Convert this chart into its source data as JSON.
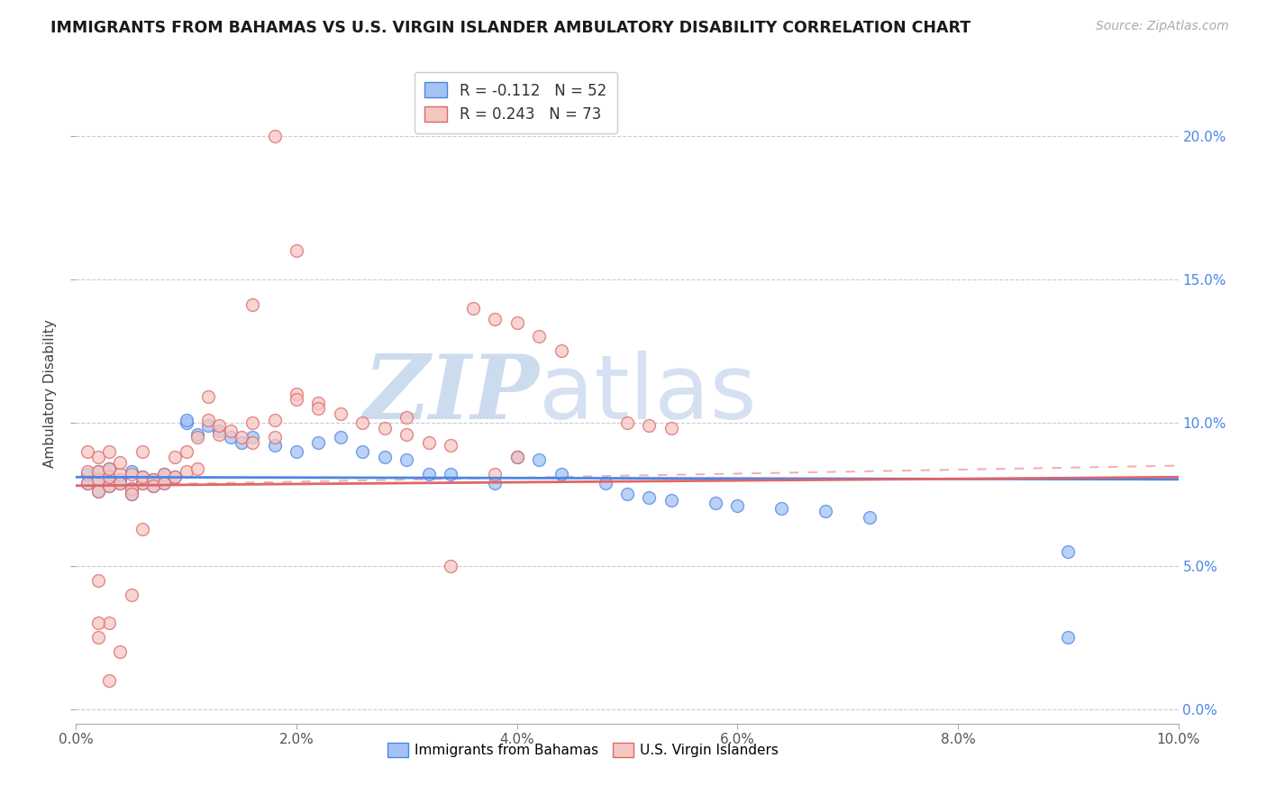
{
  "title": "IMMIGRANTS FROM BAHAMAS VS U.S. VIRGIN ISLANDER AMBULATORY DISABILITY CORRELATION CHART",
  "source": "Source: ZipAtlas.com",
  "ylabel": "Ambulatory Disability",
  "xlim": [
    0.0,
    0.1
  ],
  "ylim": [
    -0.005,
    0.225
  ],
  "xtick_vals": [
    0.0,
    0.02,
    0.04,
    0.06,
    0.08,
    0.1
  ],
  "ytick_vals": [
    0.0,
    0.05,
    0.1,
    0.15,
    0.2
  ],
  "blue_R": -0.112,
  "blue_N": 52,
  "pink_R": 0.243,
  "pink_N": 73,
  "blue_color": "#a4c2f4",
  "pink_color": "#f4c7c3",
  "blue_edge_color": "#4a86e8",
  "pink_edge_color": "#e06666",
  "blue_line_color": "#4a86e8",
  "pink_line_color": "#e06666",
  "pink_dash_color": "#e06666",
  "right_axis_color": "#4a86e8",
  "legend_label_blue": "Immigrants from Bahamas",
  "legend_label_pink": "U.S. Virgin Islanders",
  "blue_line_intercept": 0.081,
  "blue_line_slope": -0.008,
  "pink_solid_intercept": 0.078,
  "pink_solid_slope": 0.03,
  "pink_dash_intercept": 0.078,
  "pink_dash_slope": 0.07,
  "blue_x": [
    0.001,
    0.001,
    0.002,
    0.002,
    0.002,
    0.003,
    0.003,
    0.003,
    0.004,
    0.004,
    0.005,
    0.005,
    0.005,
    0.006,
    0.006,
    0.007,
    0.007,
    0.008,
    0.008,
    0.009,
    0.01,
    0.01,
    0.011,
    0.012,
    0.013,
    0.014,
    0.015,
    0.016,
    0.018,
    0.02,
    0.022,
    0.024,
    0.026,
    0.028,
    0.03,
    0.032,
    0.034,
    0.038,
    0.04,
    0.042,
    0.044,
    0.048,
    0.05,
    0.052,
    0.054,
    0.058,
    0.06,
    0.064,
    0.068,
    0.072,
    0.09,
    0.09
  ],
  "blue_y": [
    0.079,
    0.082,
    0.08,
    0.076,
    0.083,
    0.078,
    0.081,
    0.084,
    0.08,
    0.079,
    0.077,
    0.075,
    0.083,
    0.079,
    0.081,
    0.08,
    0.078,
    0.082,
    0.079,
    0.081,
    0.1,
    0.101,
    0.096,
    0.099,
    0.097,
    0.095,
    0.093,
    0.095,
    0.092,
    0.09,
    0.093,
    0.095,
    0.09,
    0.088,
    0.087,
    0.082,
    0.082,
    0.079,
    0.088,
    0.087,
    0.082,
    0.079,
    0.075,
    0.074,
    0.073,
    0.072,
    0.071,
    0.07,
    0.069,
    0.067,
    0.055,
    0.025
  ],
  "pink_x": [
    0.001,
    0.001,
    0.001,
    0.002,
    0.002,
    0.002,
    0.002,
    0.003,
    0.003,
    0.003,
    0.003,
    0.004,
    0.004,
    0.004,
    0.005,
    0.005,
    0.005,
    0.006,
    0.006,
    0.006,
    0.007,
    0.007,
    0.008,
    0.008,
    0.009,
    0.009,
    0.01,
    0.01,
    0.011,
    0.011,
    0.012,
    0.012,
    0.013,
    0.013,
    0.014,
    0.015,
    0.016,
    0.016,
    0.018,
    0.018,
    0.02,
    0.02,
    0.022,
    0.022,
    0.024,
    0.026,
    0.028,
    0.03,
    0.03,
    0.032,
    0.034,
    0.036,
    0.038,
    0.04,
    0.042,
    0.044,
    0.05,
    0.052,
    0.054,
    0.016,
    0.018,
    0.02,
    0.034,
    0.038,
    0.04,
    0.005,
    0.004,
    0.003,
    0.002,
    0.002,
    0.002,
    0.003,
    0.006
  ],
  "pink_y": [
    0.079,
    0.083,
    0.09,
    0.08,
    0.076,
    0.083,
    0.088,
    0.078,
    0.081,
    0.084,
    0.09,
    0.082,
    0.079,
    0.086,
    0.077,
    0.075,
    0.082,
    0.079,
    0.081,
    0.09,
    0.08,
    0.078,
    0.082,
    0.079,
    0.081,
    0.088,
    0.083,
    0.09,
    0.084,
    0.095,
    0.109,
    0.101,
    0.096,
    0.099,
    0.097,
    0.095,
    0.093,
    0.1,
    0.095,
    0.101,
    0.11,
    0.108,
    0.107,
    0.105,
    0.103,
    0.1,
    0.098,
    0.096,
    0.102,
    0.093,
    0.092,
    0.14,
    0.136,
    0.135,
    0.13,
    0.125,
    0.1,
    0.099,
    0.098,
    0.141,
    0.2,
    0.16,
    0.05,
    0.082,
    0.088,
    0.04,
    0.02,
    0.03,
    0.03,
    0.025,
    0.045,
    0.01,
    0.063
  ]
}
